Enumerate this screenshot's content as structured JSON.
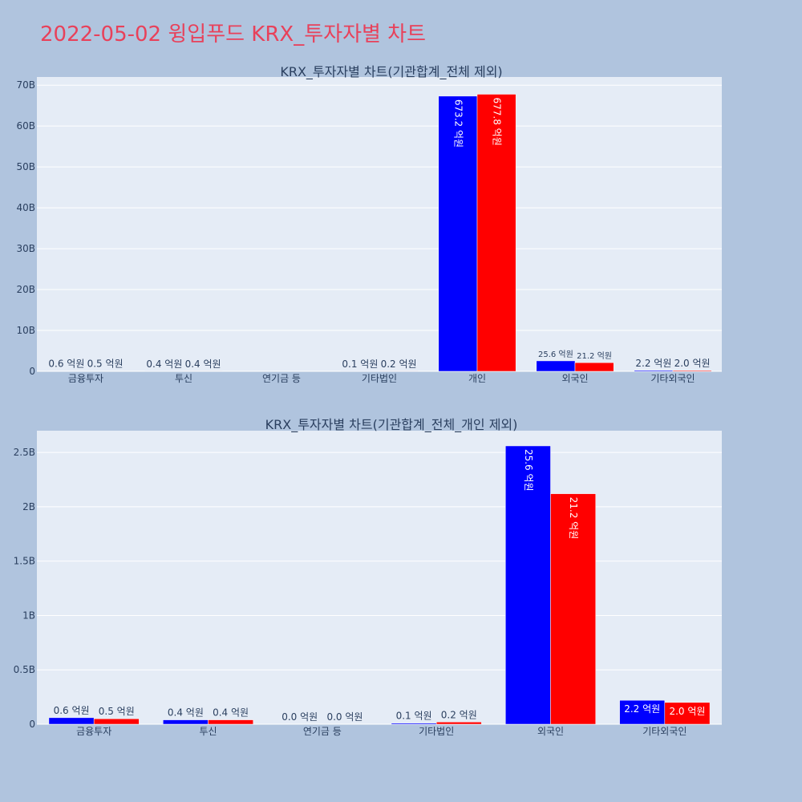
{
  "page_title": "2022-05-02 윙입푸드 KRX_투자자별 차트",
  "colors": {
    "background": "#b0c4de",
    "plot_bg": "#e5ecf6",
    "title": "#e8415a",
    "buy": "#0000ff",
    "sell": "#ff0000",
    "text": "#2a3f5f"
  },
  "chart_data": [
    {
      "type": "bar",
      "title": "KRX_투자자별 차트(기관합계_전체 제외)",
      "categories": [
        "금융투자",
        "투신",
        "연기금 등",
        "기타법인",
        "개인",
        "외국인",
        "기타외국인"
      ],
      "series": [
        {
          "color": "#0000ff",
          "values": [
            60000000,
            40000000,
            0,
            10000000,
            67320000000,
            2560000000,
            220000000
          ],
          "labels": [
            "0.6 억원",
            "0.4 억원",
            "",
            "0.1 억원",
            "673.2 억원",
            "25.6 억원",
            "2.2 억원"
          ]
        },
        {
          "color": "#ff0000",
          "values": [
            50000000,
            40000000,
            0,
            20000000,
            67780000000,
            2120000000,
            200000000
          ],
          "labels": [
            "0.5 억원",
            "0.4 억원",
            "",
            "0.2 억원",
            "677.8 억원",
            "21.2 억원",
            "2.0 억원"
          ]
        }
      ],
      "ylim": [
        0,
        72000000000
      ],
      "yticks": [
        0,
        10000000000,
        20000000000,
        30000000000,
        40000000000,
        50000000000,
        60000000000,
        70000000000
      ],
      "ytick_labels": [
        "0",
        "10B",
        "20B",
        "30B",
        "40B",
        "50B",
        "60B",
        "70B"
      ],
      "grid": true
    },
    {
      "type": "bar",
      "title": "KRX_투자자별 차트(기관합계_전체_개인 제외)",
      "categories": [
        "금융투자",
        "투신",
        "연기금 등",
        "기타법인",
        "외국인",
        "기타외국인"
      ],
      "series": [
        {
          "color": "#0000ff",
          "values": [
            60000000,
            40000000,
            0,
            10000000,
            2560000000,
            220000000
          ],
          "labels": [
            "0.6 억원",
            "0.4 억원",
            "0.0 억원",
            "0.1 억원",
            "25.6 억원",
            "2.2 억원"
          ]
        },
        {
          "color": "#ff0000",
          "values": [
            50000000,
            40000000,
            0,
            20000000,
            2120000000,
            200000000
          ],
          "labels": [
            "0.5 억원",
            "0.4 억원",
            "0.0 억원",
            "0.2 억원",
            "21.2 억원",
            "2.0 억원"
          ]
        }
      ],
      "ylim": [
        0,
        2700000000
      ],
      "yticks": [
        0,
        500000000,
        1000000000,
        1500000000,
        2000000000,
        2500000000
      ],
      "ytick_labels": [
        "0",
        "0.5B",
        "1B",
        "1.5B",
        "2B",
        "2.5B"
      ],
      "grid": true
    }
  ]
}
